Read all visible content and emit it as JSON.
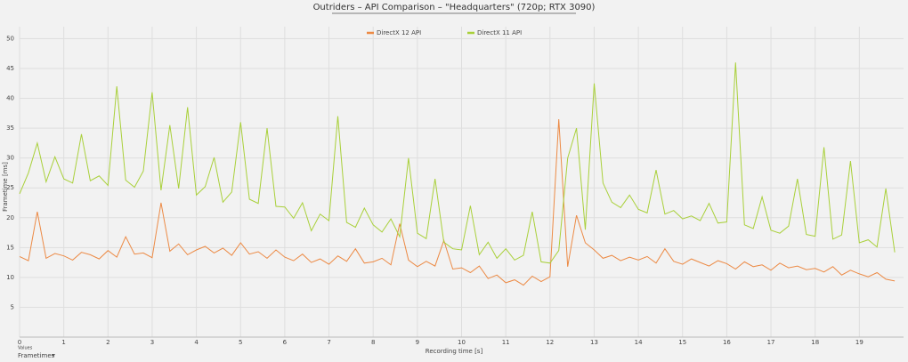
{
  "chart_data": {
    "type": "line",
    "title": "Outriders – API Comparison – \"Headquarters\" (720p; RTX 3090)",
    "x_label": "Recording time [s]",
    "y_label": "Frametime [ms]",
    "x": [
      0,
      0.2,
      0.4,
      0.6,
      0.8,
      1,
      1.2,
      1.4,
      1.6,
      1.8,
      2,
      2.2,
      2.4,
      2.6,
      2.8,
      3,
      3.2,
      3.4,
      3.6,
      3.8,
      4,
      4.2,
      4.4,
      4.6,
      4.8,
      5,
      5.2,
      5.4,
      5.6,
      5.8,
      6,
      6.2,
      6.4,
      6.6,
      6.8,
      7,
      7.2,
      7.4,
      7.6,
      7.8,
      8,
      8.2,
      8.4,
      8.6,
      8.8,
      9,
      9.2,
      9.4,
      9.6,
      9.8,
      10,
      10.2,
      10.4,
      10.6,
      10.8,
      11,
      11.2,
      11.4,
      11.6,
      11.8,
      12,
      12.2,
      12.4,
      12.6,
      12.8,
      13,
      13.2,
      13.4,
      13.6,
      13.8,
      14,
      14.2,
      14.4,
      14.6,
      14.8,
      15,
      15.2,
      15.4,
      15.6,
      15.8,
      16,
      16.2,
      16.4,
      16.6,
      16.8,
      17,
      17.2,
      17.4,
      17.6,
      17.8,
      18,
      18.2,
      18.4,
      18.6,
      18.8,
      19,
      19.2,
      19.4,
      19.6,
      19.8
    ],
    "series": [
      {
        "name": "DirectX 12 API",
        "color": "#ec8a45",
        "values": [
          13.5,
          12.8,
          21,
          13.2,
          14,
          13.6,
          12.9,
          14.2,
          13.8,
          13.1,
          14.5,
          13.4,
          16.8,
          13.9,
          14.1,
          13.3,
          22.5,
          14.4,
          15.6,
          13.8,
          14.6,
          15.2,
          14.1,
          14.9,
          13.7,
          15.8,
          13.9,
          14.3,
          13.2,
          14.6,
          13.4,
          12.8,
          13.9,
          12.5,
          13.1,
          12.2,
          13.6,
          12.7,
          14.8,
          12.4,
          12.6,
          13.2,
          12.1,
          19,
          12.9,
          11.8,
          12.7,
          11.9,
          16.2,
          11.4,
          11.6,
          10.8,
          11.9,
          9.8,
          10.4,
          9.1,
          9.6,
          8.7,
          10.2,
          9.3,
          10.1,
          36.5,
          11.8,
          20.4,
          15.8,
          14.6,
          13.2,
          13.7,
          12.8,
          13.4,
          12.9,
          13.5,
          12.4,
          14.8,
          12.7,
          12.2,
          13.1,
          12.5,
          11.9,
          12.8,
          12.3,
          11.4,
          12.6,
          11.8,
          12.1,
          11.2,
          12.4,
          11.6,
          11.9,
          11.3,
          11.5,
          10.9,
          11.8,
          10.4,
          11.2,
          10.6,
          10.1,
          10.8,
          9.7,
          9.4
        ]
      },
      {
        "name": "DirectX 11 API",
        "color": "#a9d03a",
        "values": [
          24,
          27.5,
          32.5,
          26,
          30.2,
          26.5,
          25.8,
          34,
          26.2,
          27,
          25.4,
          42,
          26.3,
          25.1,
          27.8,
          41,
          24.6,
          35.5,
          24.9,
          38.5,
          23.8,
          25.2,
          30.1,
          22.6,
          24.3,
          36,
          23.1,
          22.4,
          35,
          21.9,
          21.8,
          19.9,
          22.5,
          17.8,
          20.6,
          19.5,
          37,
          19.2,
          18.4,
          21.6,
          18.8,
          17.6,
          19.8,
          16.8,
          30,
          17.4,
          16.5,
          26.5,
          15.9,
          14.8,
          14.6,
          22,
          13.8,
          15.9,
          13.2,
          14.8,
          12.9,
          13.7,
          21,
          12.6,
          12.4,
          14.5,
          30,
          35,
          18,
          42.5,
          25.8,
          22.6,
          21.7,
          23.8,
          21.4,
          20.8,
          28,
          20.6,
          21.2,
          19.8,
          20.3,
          19.5,
          22.4,
          19.1,
          19.3,
          46,
          18.8,
          18.2,
          23.5,
          17.9,
          17.4,
          18.6,
          26.5,
          17.2,
          16.9,
          31.8,
          16.4,
          17.1,
          29.5,
          15.8,
          16.3,
          15.1,
          24.9,
          14.2
        ]
      }
    ],
    "xlim": [
      0,
      20
    ],
    "xticks": [
      0,
      1,
      2,
      3,
      4,
      5,
      6,
      7,
      8,
      9,
      10,
      11,
      12,
      13,
      14,
      15,
      16,
      17,
      18,
      19
    ],
    "ylim": [
      0,
      52
    ],
    "yticks": [
      5,
      10,
      15,
      20,
      25,
      30,
      35,
      40,
      45,
      50
    ],
    "grid": true,
    "legend": "top"
  },
  "controls": {
    "caption": "Values",
    "selector": "Frametimes"
  }
}
